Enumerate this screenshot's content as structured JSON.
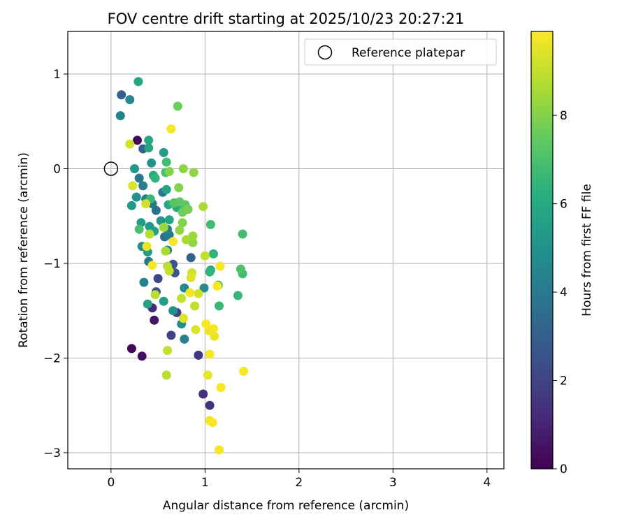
{
  "chart_data": {
    "type": "scatter",
    "title": "FOV centre drift starting at 2025/10/23 20:27:21",
    "xlabel": "Angular distance from reference (arcmin)",
    "ylabel": "Rotation from reference (arcmin)",
    "colorbar_label": "Hours from first FF file",
    "colormap": "viridis",
    "xlim": [
      -0.46,
      4.18
    ],
    "ylim": [
      -3.17,
      1.45
    ],
    "clim": [
      0,
      9.9
    ],
    "xticks": [
      0,
      1,
      2,
      3,
      4
    ],
    "xtick_labels": [
      "0",
      "1",
      "2",
      "3",
      "4"
    ],
    "yticks": [
      1,
      0,
      -1,
      -2,
      -3
    ],
    "ytick_labels": [
      "1",
      "0",
      "−1",
      "−2",
      "−3"
    ],
    "cticks": [
      0,
      2,
      4,
      6,
      8
    ],
    "ctick_labels": [
      "0",
      "2",
      "4",
      "6",
      "8"
    ],
    "grid": true,
    "legend": {
      "placement": "top-right",
      "entries": [
        "Reference platepar"
      ]
    },
    "reference": {
      "x": 0,
      "y": 0,
      "label": "Reference platepar"
    },
    "points": [
      {
        "x": 0.28,
        "y": 0.3,
        "t": 0.2
      },
      {
        "x": 0.22,
        "y": -1.9,
        "t": 0.2
      },
      {
        "x": 0.33,
        "y": -1.98,
        "t": 0.4
      },
      {
        "x": 0.46,
        "y": -1.6,
        "t": 0.6
      },
      {
        "x": 0.44,
        "y": -1.47,
        "t": 1.2
      },
      {
        "x": 0.98,
        "y": -2.38,
        "t": 1.4
      },
      {
        "x": 1.05,
        "y": -2.5,
        "t": 1.4
      },
      {
        "x": 0.93,
        "y": -1.97,
        "t": 1.6
      },
      {
        "x": 0.64,
        "y": -1.76,
        "t": 2.0
      },
      {
        "x": 0.7,
        "y": -1.52,
        "t": 1.8
      },
      {
        "x": 0.48,
        "y": -1.3,
        "t": 2.4
      },
      {
        "x": 0.5,
        "y": -1.16,
        "t": 2.2
      },
      {
        "x": 0.68,
        "y": -1.1,
        "t": 2.6
      },
      {
        "x": 0.66,
        "y": -1.01,
        "t": 2.4
      },
      {
        "x": 0.85,
        "y": -0.94,
        "t": 3.0
      },
      {
        "x": 0.11,
        "y": 0.78,
        "t": 3.0
      },
      {
        "x": 0.2,
        "y": 0.73,
        "t": 4.6
      },
      {
        "x": 0.1,
        "y": 0.56,
        "t": 4.4
      },
      {
        "x": 0.34,
        "y": 0.21,
        "t": 3.2
      },
      {
        "x": 0.3,
        "y": -0.1,
        "t": 3.8
      },
      {
        "x": 0.34,
        "y": -0.18,
        "t": 4.2
      },
      {
        "x": 0.44,
        "y": -0.37,
        "t": 3.8
      },
      {
        "x": 0.37,
        "y": -0.32,
        "t": 4.2
      },
      {
        "x": 0.48,
        "y": -0.44,
        "t": 3.6
      },
      {
        "x": 0.55,
        "y": -0.25,
        "t": 4.0
      },
      {
        "x": 0.6,
        "y": -0.64,
        "t": 4.4
      },
      {
        "x": 0.62,
        "y": -0.7,
        "t": 4.0
      },
      {
        "x": 0.57,
        "y": -0.72,
        "t": 3.6
      },
      {
        "x": 0.6,
        "y": -0.86,
        "t": 4.4
      },
      {
        "x": 0.4,
        "y": -0.98,
        "t": 4.0
      },
      {
        "x": 0.35,
        "y": -1.2,
        "t": 4.4
      },
      {
        "x": 0.78,
        "y": -1.26,
        "t": 4.6
      },
      {
        "x": 0.78,
        "y": -1.8,
        "t": 4.2
      },
      {
        "x": 0.99,
        "y": -1.26,
        "t": 4.8
      },
      {
        "x": 0.66,
        "y": -1.5,
        "t": 5.0
      },
      {
        "x": 0.75,
        "y": -1.64,
        "t": 4.8
      },
      {
        "x": 0.29,
        "y": 0.92,
        "t": 5.8
      },
      {
        "x": 0.4,
        "y": 0.3,
        "t": 5.8
      },
      {
        "x": 0.4,
        "y": 0.22,
        "t": 5.8
      },
      {
        "x": 0.56,
        "y": 0.17,
        "t": 5.4
      },
      {
        "x": 0.25,
        "y": 0.0,
        "t": 5.2
      },
      {
        "x": 0.43,
        "y": 0.06,
        "t": 5.0
      },
      {
        "x": 0.27,
        "y": -0.3,
        "t": 5.0
      },
      {
        "x": 0.22,
        "y": -0.39,
        "t": 5.2
      },
      {
        "x": 0.32,
        "y": -0.57,
        "t": 5.4
      },
      {
        "x": 0.41,
        "y": -0.61,
        "t": 5.2
      },
      {
        "x": 0.46,
        "y": -0.66,
        "t": 5.6
      },
      {
        "x": 0.33,
        "y": -0.82,
        "t": 4.8
      },
      {
        "x": 0.39,
        "y": -0.88,
        "t": 5.4
      },
      {
        "x": 0.56,
        "y": -1.4,
        "t": 5.4
      },
      {
        "x": 0.39,
        "y": -1.43,
        "t": 5.6
      },
      {
        "x": 0.53,
        "y": -0.55,
        "t": 5.2
      },
      {
        "x": 0.62,
        "y": -0.54,
        "t": 5.8
      },
      {
        "x": 0.61,
        "y": -0.38,
        "t": 6.0
      },
      {
        "x": 0.7,
        "y": -0.41,
        "t": 6.2
      },
      {
        "x": 0.59,
        "y": -0.22,
        "t": 5.8
      },
      {
        "x": 1.06,
        "y": -1.07,
        "t": 6.2
      },
      {
        "x": 1.09,
        "y": -0.9,
        "t": 6.4
      },
      {
        "x": 1.05,
        "y": -1.09,
        "t": 6.4
      },
      {
        "x": 1.14,
        "y": -1.23,
        "t": 6.8
      },
      {
        "x": 1.15,
        "y": -1.45,
        "t": 6.6
      },
      {
        "x": 1.06,
        "y": -0.59,
        "t": 6.8
      },
      {
        "x": 1.35,
        "y": -1.34,
        "t": 6.6
      },
      {
        "x": 1.4,
        "y": -0.69,
        "t": 6.8
      },
      {
        "x": 1.38,
        "y": -1.06,
        "t": 7.0
      },
      {
        "x": 1.4,
        "y": -1.11,
        "t": 6.8
      },
      {
        "x": 0.45,
        "y": -0.07,
        "t": 6.0
      },
      {
        "x": 0.47,
        "y": -0.1,
        "t": 6.4
      },
      {
        "x": 0.58,
        "y": -0.04,
        "t": 7.0
      },
      {
        "x": 0.59,
        "y": 0.07,
        "t": 6.8
      },
      {
        "x": 0.42,
        "y": -0.32,
        "t": 6.6
      },
      {
        "x": 0.3,
        "y": -0.64,
        "t": 7.0
      },
      {
        "x": 0.67,
        "y": -0.36,
        "t": 7.2
      },
      {
        "x": 0.73,
        "y": -0.35,
        "t": 7.4
      },
      {
        "x": 0.79,
        "y": -0.38,
        "t": 7.4
      },
      {
        "x": 0.76,
        "y": -0.46,
        "t": 7.6
      },
      {
        "x": 0.82,
        "y": -0.43,
        "t": 7.8
      },
      {
        "x": 0.71,
        "y": 0.66,
        "t": 7.6
      },
      {
        "x": 0.62,
        "y": -0.03,
        "t": 8.0
      },
      {
        "x": 0.77,
        "y": 0.0,
        "t": 8.2
      },
      {
        "x": 0.88,
        "y": -0.04,
        "t": 8.2
      },
      {
        "x": 0.72,
        "y": -0.2,
        "t": 8.0
      },
      {
        "x": 0.76,
        "y": -0.57,
        "t": 8.0
      },
      {
        "x": 0.73,
        "y": -0.65,
        "t": 8.2
      },
      {
        "x": 0.56,
        "y": -0.62,
        "t": 8.4
      },
      {
        "x": 0.58,
        "y": -0.87,
        "t": 8.6
      },
      {
        "x": 0.8,
        "y": -0.75,
        "t": 8.6
      },
      {
        "x": 0.87,
        "y": -0.71,
        "t": 8.4
      },
      {
        "x": 0.87,
        "y": -0.78,
        "t": 8.2
      },
      {
        "x": 0.98,
        "y": -0.4,
        "t": 8.6
      },
      {
        "x": 0.41,
        "y": -0.69,
        "t": 8.8
      },
      {
        "x": 0.47,
        "y": -1.33,
        "t": 8.8
      },
      {
        "x": 0.6,
        "y": -1.03,
        "t": 8.8
      },
      {
        "x": 0.62,
        "y": -1.08,
        "t": 9.0
      },
      {
        "x": 0.75,
        "y": -1.37,
        "t": 9.0
      },
      {
        "x": 0.89,
        "y": -1.45,
        "t": 9.0
      },
      {
        "x": 0.93,
        "y": -1.32,
        "t": 9.2
      },
      {
        "x": 1.0,
        "y": -0.92,
        "t": 9.0
      },
      {
        "x": 0.86,
        "y": -1.1,
        "t": 9.2
      },
      {
        "x": 0.85,
        "y": -1.15,
        "t": 9.4
      },
      {
        "x": 0.77,
        "y": -1.58,
        "t": 9.4
      },
      {
        "x": 0.9,
        "y": -1.7,
        "t": 9.4
      },
      {
        "x": 0.6,
        "y": -1.92,
        "t": 9.0
      },
      {
        "x": 0.59,
        "y": -2.18,
        "t": 8.8
      },
      {
        "x": 0.2,
        "y": 0.26,
        "t": 9.2
      },
      {
        "x": 0.23,
        "y": -0.18,
        "t": 9.4
      },
      {
        "x": 0.37,
        "y": -0.37,
        "t": 9.2
      },
      {
        "x": 0.38,
        "y": -0.82,
        "t": 9.6
      },
      {
        "x": 0.44,
        "y": -1.02,
        "t": 9.8
      },
      {
        "x": 0.64,
        "y": 0.42,
        "t": 9.8
      },
      {
        "x": 0.66,
        "y": -0.77,
        "t": 9.8
      },
      {
        "x": 0.84,
        "y": -1.31,
        "t": 9.8
      },
      {
        "x": 1.01,
        "y": -1.64,
        "t": 9.8
      },
      {
        "x": 1.04,
        "y": -1.71,
        "t": 9.6
      },
      {
        "x": 1.09,
        "y": -1.69,
        "t": 9.8
      },
      {
        "x": 1.1,
        "y": -1.77,
        "t": 9.6
      },
      {
        "x": 1.05,
        "y": -1.96,
        "t": 9.8
      },
      {
        "x": 1.03,
        "y": -2.18,
        "t": 9.6
      },
      {
        "x": 1.17,
        "y": -2.31,
        "t": 9.8
      },
      {
        "x": 1.05,
        "y": -2.66,
        "t": 9.8
      },
      {
        "x": 1.08,
        "y": -2.68,
        "t": 9.8
      },
      {
        "x": 1.15,
        "y": -2.97,
        "t": 9.8
      },
      {
        "x": 1.41,
        "y": -2.14,
        "t": 9.8
      },
      {
        "x": 1.16,
        "y": -1.03,
        "t": 9.8
      },
      {
        "x": 1.13,
        "y": -1.24,
        "t": 9.8
      }
    ]
  }
}
